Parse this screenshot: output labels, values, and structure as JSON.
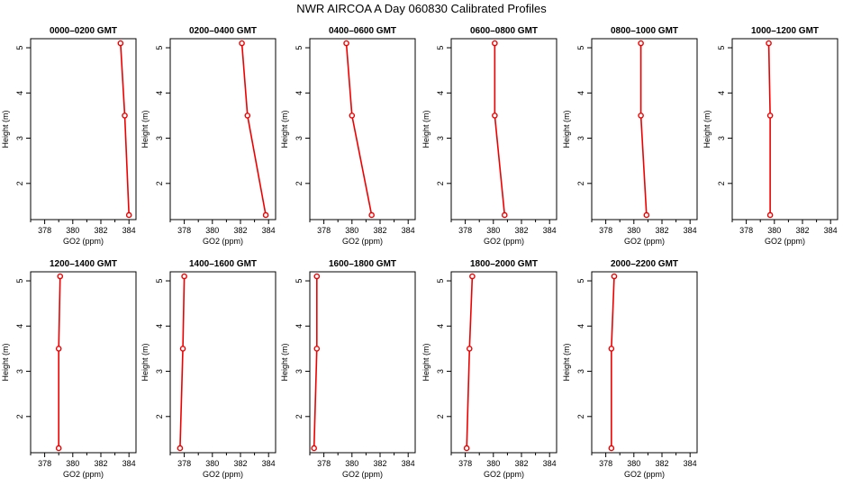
{
  "figure": {
    "title": "NWR AIRCOA A  Day 060830  Calibrated Profiles"
  },
  "chart_data": [
    {
      "type": "line",
      "title": "0000–0200 GMT",
      "xlabel": "GO2 (ppm)",
      "ylabel": "Height (m)",
      "xlim": [
        377,
        384.5
      ],
      "ylim": [
        1.2,
        5.2
      ],
      "xticks": [
        "378",
        "380",
        "382",
        "384"
      ],
      "yticks": [
        "2",
        "3",
        "4",
        "5"
      ],
      "series": [
        {
          "x": [
            383.4,
            383.7,
            384.0
          ],
          "y": [
            5.1,
            3.5,
            1.3
          ]
        }
      ],
      "colors": {
        "line": "#ee0000",
        "marker": "#ee0000"
      }
    },
    {
      "type": "line",
      "title": "0200–0400 GMT",
      "xlabel": "GO2 (ppm)",
      "ylabel": "Height (m)",
      "xlim": [
        377,
        384.5
      ],
      "ylim": [
        1.2,
        5.2
      ],
      "xticks": [
        "378",
        "380",
        "382",
        "384"
      ],
      "yticks": [
        "2",
        "3",
        "4",
        "5"
      ],
      "series": [
        {
          "x": [
            382.1,
            382.5,
            383.8
          ],
          "y": [
            5.1,
            3.5,
            1.3
          ]
        }
      ],
      "colors": {
        "line": "#ee0000",
        "marker": "#ee0000"
      }
    },
    {
      "type": "line",
      "title": "0400–0600 GMT",
      "xlabel": "GO2 (ppm)",
      "ylabel": "Height (m)",
      "xlim": [
        377,
        384.5
      ],
      "ylim": [
        1.2,
        5.2
      ],
      "xticks": [
        "378",
        "380",
        "382",
        "384"
      ],
      "yticks": [
        "2",
        "3",
        "4",
        "5"
      ],
      "series": [
        {
          "x": [
            379.6,
            380.0,
            381.4
          ],
          "y": [
            5.1,
            3.5,
            1.3
          ]
        }
      ],
      "colors": {
        "line": "#ee0000",
        "marker": "#ee0000"
      }
    },
    {
      "type": "line",
      "title": "0600–0800 GMT",
      "xlabel": "GO2 (ppm)",
      "ylabel": "Height (m)",
      "xlim": [
        377,
        384.5
      ],
      "ylim": [
        1.2,
        5.2
      ],
      "xticks": [
        "378",
        "380",
        "382",
        "384"
      ],
      "yticks": [
        "2",
        "3",
        "4",
        "5"
      ],
      "series": [
        {
          "x": [
            380.1,
            380.1,
            380.8
          ],
          "y": [
            5.1,
            3.5,
            1.3
          ]
        }
      ],
      "colors": {
        "line": "#ee0000",
        "marker": "#ee0000"
      }
    },
    {
      "type": "line",
      "title": "0800–1000 GMT",
      "xlabel": "GO2 (ppm)",
      "ylabel": "Height (m)",
      "xlim": [
        377,
        384.5
      ],
      "ylim": [
        1.2,
        5.2
      ],
      "xticks": [
        "378",
        "380",
        "382",
        "384"
      ],
      "yticks": [
        "2",
        "3",
        "4",
        "5"
      ],
      "series": [
        {
          "x": [
            380.5,
            380.5,
            380.9
          ],
          "y": [
            5.1,
            3.5,
            1.3
          ]
        }
      ],
      "colors": {
        "line": "#ee0000",
        "marker": "#ee0000"
      }
    },
    {
      "type": "line",
      "title": "1000–1200 GMT",
      "xlabel": "GO2 (ppm)",
      "ylabel": "Height (m)",
      "xlim": [
        377,
        384.5
      ],
      "ylim": [
        1.2,
        5.2
      ],
      "xticks": [
        "378",
        "380",
        "382",
        "384"
      ],
      "yticks": [
        "2",
        "3",
        "4",
        "5"
      ],
      "series": [
        {
          "x": [
            379.6,
            379.7,
            379.7
          ],
          "y": [
            5.1,
            3.5,
            1.3
          ]
        }
      ],
      "colors": {
        "line": "#ee0000",
        "marker": "#ee0000"
      }
    },
    {
      "type": "line",
      "title": "1200–1400 GMT",
      "xlabel": "GO2 (ppm)",
      "ylabel": "Height (m)",
      "xlim": [
        377,
        384.5
      ],
      "ylim": [
        1.2,
        5.2
      ],
      "xticks": [
        "378",
        "380",
        "382",
        "384"
      ],
      "yticks": [
        "2",
        "3",
        "4",
        "5"
      ],
      "series": [
        {
          "x": [
            379.1,
            379.0,
            379.0
          ],
          "y": [
            5.1,
            3.5,
            1.3
          ]
        }
      ],
      "colors": {
        "line": "#ee0000",
        "marker": "#ee0000"
      }
    },
    {
      "type": "line",
      "title": "1400–1600 GMT",
      "xlabel": "GO2 (ppm)",
      "ylabel": "Height (m)",
      "xlim": [
        377,
        384.5
      ],
      "ylim": [
        1.2,
        5.2
      ],
      "xticks": [
        "378",
        "380",
        "382",
        "384"
      ],
      "yticks": [
        "2",
        "3",
        "4",
        "5"
      ],
      "series": [
        {
          "x": [
            378.0,
            377.9,
            377.7
          ],
          "y": [
            5.1,
            3.5,
            1.3
          ]
        }
      ],
      "colors": {
        "line": "#ee0000",
        "marker": "#ee0000"
      }
    },
    {
      "type": "line",
      "title": "1600–1800 GMT",
      "xlabel": "GO2 (ppm)",
      "ylabel": "Height (m)",
      "xlim": [
        377,
        384.5
      ],
      "ylim": [
        1.2,
        5.2
      ],
      "xticks": [
        "378",
        "380",
        "382",
        "384"
      ],
      "yticks": [
        "2",
        "3",
        "4",
        "5"
      ],
      "series": [
        {
          "x": [
            377.5,
            377.5,
            377.3
          ],
          "y": [
            5.1,
            3.5,
            1.3
          ]
        }
      ],
      "colors": {
        "line": "#ee0000",
        "marker": "#ee0000"
      }
    },
    {
      "type": "line",
      "title": "1800–2000 GMT",
      "xlabel": "GO2 (ppm)",
      "ylabel": "Height (m)",
      "xlim": [
        377,
        384.5
      ],
      "ylim": [
        1.2,
        5.2
      ],
      "xticks": [
        "378",
        "380",
        "382",
        "384"
      ],
      "yticks": [
        "2",
        "3",
        "4",
        "5"
      ],
      "series": [
        {
          "x": [
            378.5,
            378.3,
            378.1
          ],
          "y": [
            5.1,
            3.5,
            1.3
          ]
        }
      ],
      "colors": {
        "line": "#ee0000",
        "marker": "#ee0000"
      }
    },
    {
      "type": "line",
      "title": "2000–2200 GMT",
      "xlabel": "GO2 (ppm)",
      "ylabel": "Height (m)",
      "xlim": [
        377,
        384.5
      ],
      "ylim": [
        1.2,
        5.2
      ],
      "xticks": [
        "378",
        "380",
        "382",
        "384"
      ],
      "yticks": [
        "2",
        "3",
        "4",
        "5"
      ],
      "series": [
        {
          "x": [
            378.6,
            378.4,
            378.4
          ],
          "y": [
            5.1,
            3.5,
            1.3
          ]
        }
      ],
      "colors": {
        "line": "#ee0000",
        "marker": "#ee0000"
      }
    }
  ]
}
